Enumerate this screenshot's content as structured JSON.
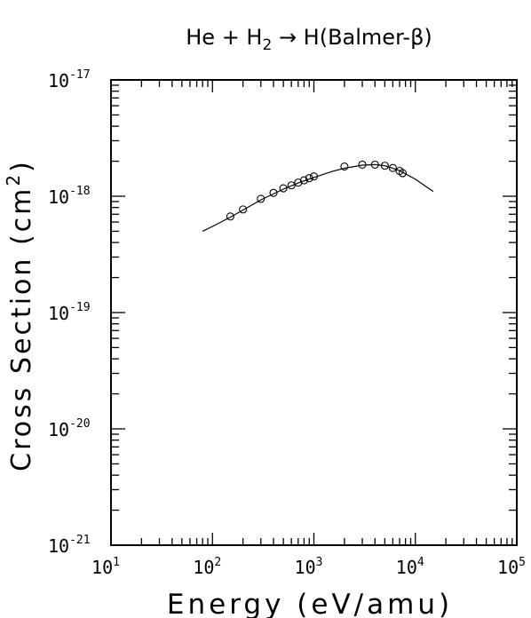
{
  "chart_data": {
    "type": "scatter",
    "title": {
      "pre": "He + H",
      "sub": "2",
      "post": " → H(Balmer-β)"
    },
    "xlabel": "Energy (eV/amu)",
    "ylabel": {
      "pre": "Cross Section (cm",
      "sup": "2",
      "post": ")"
    },
    "xscale": "log",
    "yscale": "log",
    "xlim": [
      10,
      100000
    ],
    "ylim": [
      1e-21,
      1e-17
    ],
    "x_ticks": [
      {
        "base": "10",
        "exp": "1"
      },
      {
        "base": "10",
        "exp": "2"
      },
      {
        "base": "10",
        "exp": "3"
      },
      {
        "base": "10",
        "exp": "4"
      },
      {
        "base": "10",
        "exp": "5"
      }
    ],
    "y_ticks": [
      {
        "base": "10",
        "exp": "-21"
      },
      {
        "base": "10",
        "exp": "-20"
      },
      {
        "base": "10",
        "exp": "-19"
      },
      {
        "base": "10",
        "exp": "-18"
      },
      {
        "base": "10",
        "exp": "-17"
      }
    ],
    "grid": false,
    "series": [
      {
        "marker": "open-circle",
        "x": [
          150,
          200,
          300,
          400,
          500,
          600,
          700,
          800,
          900,
          1000,
          2000,
          3000,
          4000,
          5000,
          6000,
          7000,
          7500
        ],
        "y": [
          6.7e-19,
          7.7e-19,
          9.5e-19,
          1.07e-18,
          1.17e-18,
          1.24e-18,
          1.31e-18,
          1.37e-18,
          1.43e-18,
          1.48e-18,
          1.8e-18,
          1.87e-18,
          1.87e-18,
          1.83e-18,
          1.75e-18,
          1.65e-18,
          1.58e-18
        ]
      },
      {
        "marker": "line",
        "x": [
          80,
          100,
          150,
          200,
          300,
          500,
          700,
          1000,
          1500,
          2000,
          3000,
          4000,
          5000,
          7000,
          10000,
          15000
        ],
        "y": [
          5e-19,
          5.5e-19,
          6.6e-19,
          7.6e-19,
          9.3e-19,
          1.15e-18,
          1.3e-18,
          1.45e-18,
          1.63e-18,
          1.74e-18,
          1.85e-18,
          1.87e-18,
          1.83e-18,
          1.66e-18,
          1.4e-18,
          1.1e-18
        ]
      }
    ]
  }
}
